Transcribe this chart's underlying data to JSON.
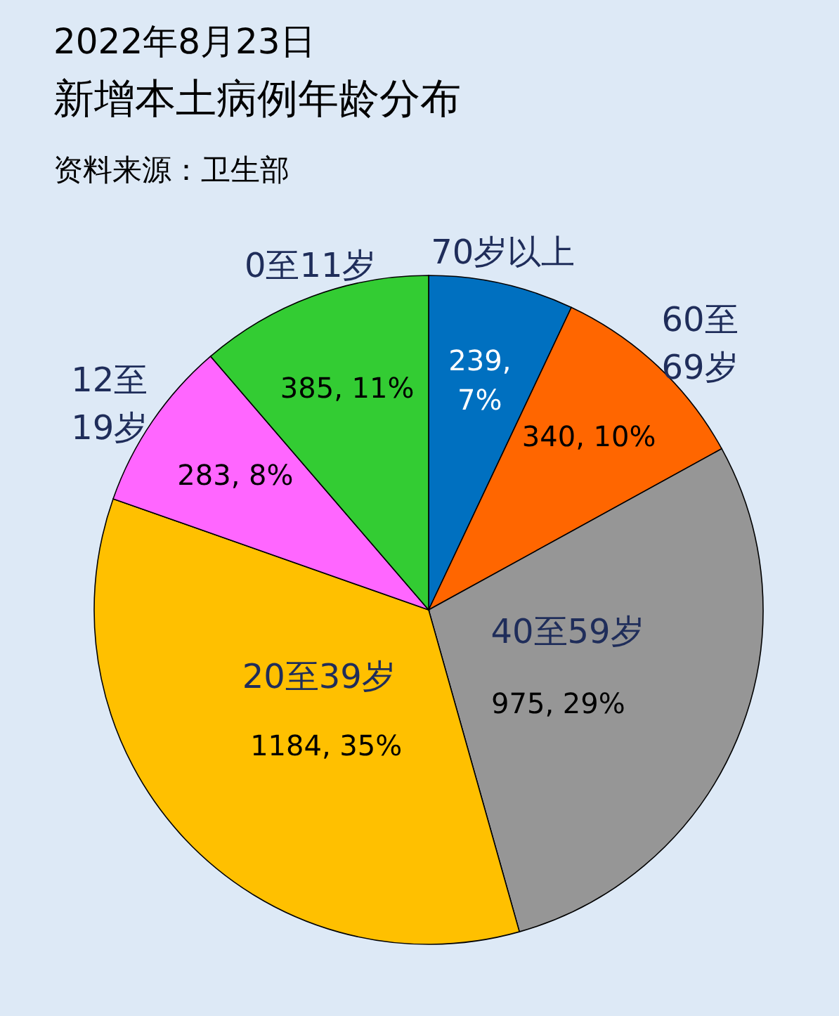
{
  "chart_data": {
    "type": "pie",
    "title": "2022年8月23日",
    "subtitle": "新增本土病例年龄分布",
    "annotations": [
      "资料来源：卫生部"
    ],
    "categories": [
      "70岁以上",
      "60至69岁",
      "40至59岁",
      "20至39岁",
      "12至19岁",
      "0至11岁"
    ],
    "values": [
      239,
      340,
      975,
      1184,
      283,
      385
    ],
    "colors": [
      "#0070c0",
      "#ff6600",
      "#969696",
      "#ffc000",
      "#ff66ff",
      "#33cc33"
    ],
    "value_labels": [
      "239, 7%",
      "340, 10%",
      "975, 29%",
      "1184, 35%",
      "283, 8%",
      "385, 11%"
    ]
  }
}
